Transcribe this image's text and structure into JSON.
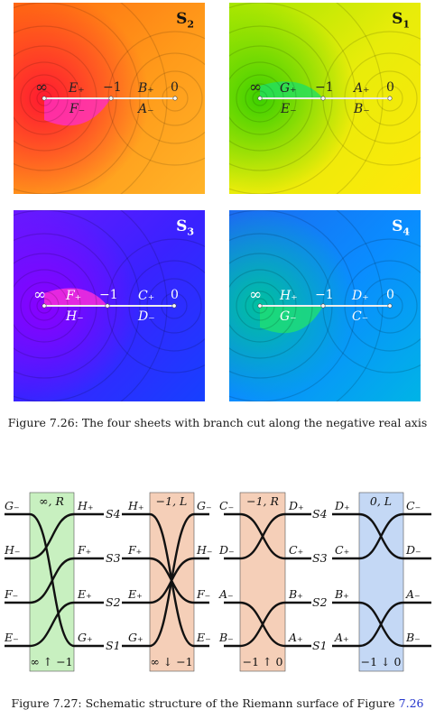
{
  "sheets": [
    {
      "id": "s2",
      "name": "S",
      "sub": "2",
      "top_labels": [
        "∞",
        "E₊",
        "−1",
        "B₊",
        "0"
      ],
      "bottom_labels": [
        "F₋",
        "A₋"
      ],
      "colors": {
        "a": "#ff2b2b",
        "b": "#ff9a1a",
        "c": "#e04060",
        "cut": "#ff40d0"
      }
    },
    {
      "id": "s1",
      "name": "S",
      "sub": "1",
      "top_labels": [
        "∞",
        "G₊",
        "−1",
        "A₊",
        "0"
      ],
      "bottom_labels": [
        "E₋",
        "B₋"
      ],
      "colors": {
        "a": "#7dd600",
        "b": "#ffe40a",
        "c": "#b8e800",
        "cut": "#22e060"
      }
    },
    {
      "id": "s3",
      "name": "S",
      "sub": "3",
      "top_labels": [
        "∞",
        "F₊",
        "−1",
        "C₊",
        "0"
      ],
      "bottom_labels": [
        "H₋",
        "D₋"
      ],
      "colors": {
        "a": "#5010ff",
        "b": "#1a3cff",
        "c": "#6a1aff",
        "cut": "#ff30d8"
      }
    },
    {
      "id": "s4",
      "name": "S",
      "sub": "4",
      "top_labels": [
        "∞",
        "H₊",
        "−1",
        "D₊",
        "0"
      ],
      "bottom_labels": [
        "G₋",
        "C₋"
      ],
      "colors": {
        "a": "#0090ff",
        "b": "#1488e8",
        "c": "#00b0d8",
        "cut": "#20e070"
      }
    }
  ],
  "caption_top": "Figure 7.26: The four sheets with branch cut along the negative real axis",
  "caption_bottom_text": "Figure 7.27: Schematic structure of the Riemann surface of Figure",
  "caption_bottom_ref": "7.26",
  "diagram": {
    "sheet_labels": [
      "S4",
      "S3",
      "S2",
      "S1"
    ],
    "col1": {
      "left": [
        "G₋",
        "H₋",
        "F₋",
        "E₋"
      ],
      "right": [
        "H₊",
        "F₊",
        "E₊",
        "G₊"
      ],
      "band_top": "∞, R",
      "band_bottom": "∞ ↑ −1",
      "band_color": "#c8f0c0"
    },
    "col2": {
      "left": [
        "H₊",
        "F₊",
        "E₊",
        "G₊"
      ],
      "right": [
        "G₋",
        "H₋",
        "F₋",
        "E₋"
      ],
      "band_top": "−1, L",
      "band_bottom": "∞ ↓ −1",
      "band_color": "#f5cfb8"
    },
    "col3": {
      "left": [
        "C₋",
        "D₋",
        "A₋",
        "B₋"
      ],
      "right": [
        "D₊",
        "C₊",
        "B₊",
        "A₊"
      ],
      "band_top": "−1, R",
      "band_bottom": "−1 ↑ 0",
      "band_color": "#f5cfb8"
    },
    "col4": {
      "left": [
        "D₊",
        "C₊",
        "B₊",
        "A₊"
      ],
      "right": [
        "C₋",
        "D₋",
        "A₋",
        "B₋"
      ],
      "band_top": "0, L",
      "band_bottom": "−1 ↓ 0",
      "band_color": "#c4d8f5"
    }
  }
}
